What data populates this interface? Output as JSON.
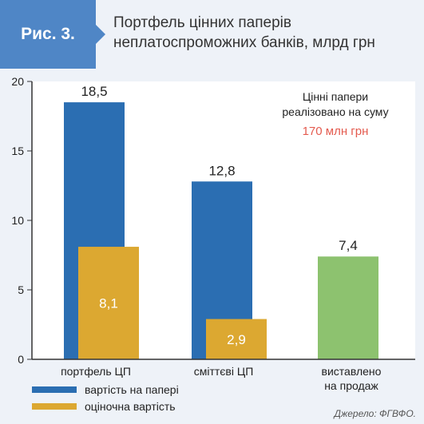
{
  "header": {
    "figure_label": "Рис. 3.",
    "title_line1": "Портфель цінних паперів",
    "title_line2": "неплатоспроможних банків, млрд грн"
  },
  "colors": {
    "blue": "#2b6eb2",
    "yellow": "#dca831",
    "green": "#8dc26f",
    "accent_red": "#e45b4f",
    "header_blue": "#4f86c6"
  },
  "annotation": {
    "line1": "Цінні папери",
    "line2": "реалізовано на суму",
    "highlight": "170 млн грн"
  },
  "source": "Джерело: ФГВФО.",
  "chart_data": {
    "type": "bar",
    "ylim": [
      0,
      20
    ],
    "yticks": [
      0,
      5,
      10,
      15,
      20
    ],
    "categories": [
      [
        "портфель ЦП"
      ],
      [
        "сміттєві ЦП"
      ],
      [
        "виставлено",
        "на продаж"
      ]
    ],
    "series": [
      {
        "name": "вартість на папері",
        "values": [
          18.5,
          12.8,
          null
        ]
      },
      {
        "name": "оціночна вартість",
        "values": [
          8.1,
          2.9,
          null
        ]
      }
    ],
    "extra_bar": {
      "category_index": 2,
      "value": 7.4
    },
    "value_labels": {
      "paper": [
        "18,5",
        "12,8",
        null
      ],
      "estimated": [
        "8,1",
        "2,9",
        null
      ],
      "extra": "7,4"
    },
    "legend": {
      "position": "bottom-left"
    }
  }
}
